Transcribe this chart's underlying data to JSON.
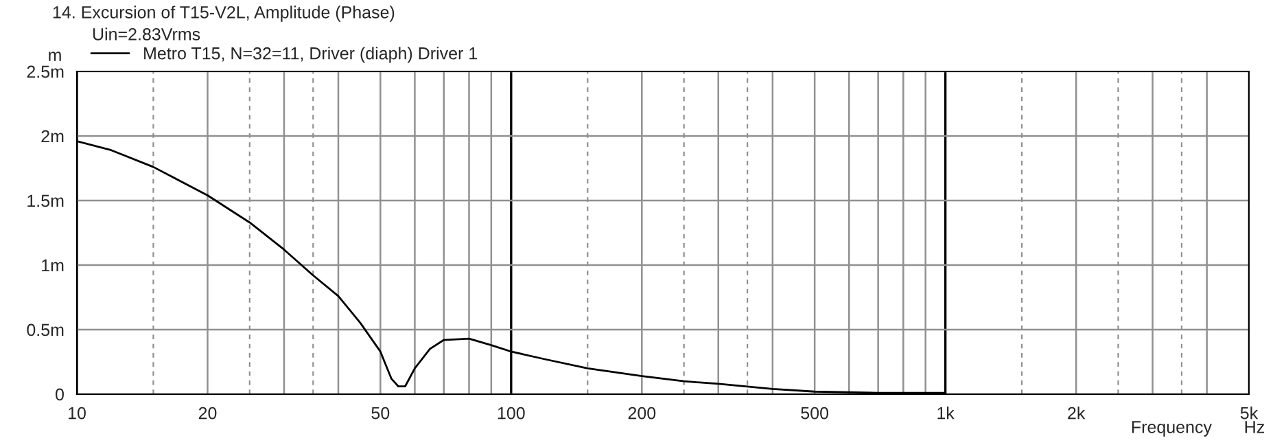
{
  "chart_data": {
    "type": "line",
    "title": "14. Excursion of T15-V2L, Amplitude (Phase)",
    "subtitle": "Uin=2.83Vrms",
    "ylabel": "m",
    "xlabel": "Frequency",
    "annotations": [
      "Hz"
    ],
    "log": "x",
    "grid": true,
    "legend": "top left",
    "line_style": "solid",
    "marker": "none",
    "xlim": [
      10,
      5000
    ],
    "xticks": [
      10,
      {
        "value": 15,
        "label": null
      },
      20,
      {
        "value": 25,
        "label": null
      },
      {
        "value": 30,
        "label": null
      },
      {
        "value": 35,
        "label": null
      },
      {
        "value": 40,
        "label": null
      },
      50,
      {
        "value": 60,
        "label": null
      },
      {
        "value": 70,
        "label": null
      },
      {
        "value": 80,
        "label": null
      },
      {
        "value": 90,
        "label": null
      },
      100,
      {
        "value": 150,
        "label": null
      },
      200,
      {
        "value": 250,
        "label": null
      },
      {
        "value": 300,
        "label": null
      },
      {
        "value": 350,
        "label": null
      },
      {
        "value": 400,
        "label": null
      },
      500,
      {
        "value": 600,
        "label": null
      },
      {
        "value": 700,
        "label": null
      },
      {
        "value": 800,
        "label": null
      },
      {
        "value": 900,
        "label": null
      },
      {
        "value": 1000,
        "label": "1k"
      },
      {
        "value": 1500,
        "label": null
      },
      {
        "value": 2000,
        "label": "2k"
      },
      {
        "value": 2500,
        "label": null
      },
      {
        "value": 3000,
        "label": null
      },
      {
        "value": 3500,
        "label": null
      },
      {
        "value": 4000,
        "label": null
      },
      {
        "value": 5000,
        "label": "5k"
      }
    ],
    "ylim": [
      0,
      2.5
    ],
    "yticks": [
      0,
      {
        "value": 0.5,
        "label": "0.5m"
      },
      {
        "value": 1,
        "label": "1m"
      },
      {
        "value": 1.5,
        "label": "1.5m"
      },
      {
        "value": 2,
        "label": "2m"
      },
      {
        "value": 2.5,
        "label": "2.5m"
      }
    ],
    "x": [
      10,
      12,
      15,
      20,
      25,
      30,
      35,
      40,
      45,
      50,
      53,
      55,
      57,
      60,
      65,
      70,
      80,
      90,
      100,
      120,
      150,
      200,
      250,
      300,
      400,
      500,
      700,
      1000
    ],
    "series": [
      {
        "name": "Metro T15, N=32=11, Driver (diaph) Driver 1",
        "color": "#000000",
        "values": [
          1.96,
          1.89,
          1.76,
          1.54,
          1.33,
          1.12,
          0.92,
          0.76,
          0.55,
          0.33,
          0.12,
          0.06,
          0.06,
          0.2,
          0.35,
          0.42,
          0.43,
          0.38,
          0.33,
          0.27,
          0.2,
          0.14,
          0.1,
          0.08,
          0.04,
          0.02,
          0.01,
          0.01
        ]
      }
    ]
  }
}
